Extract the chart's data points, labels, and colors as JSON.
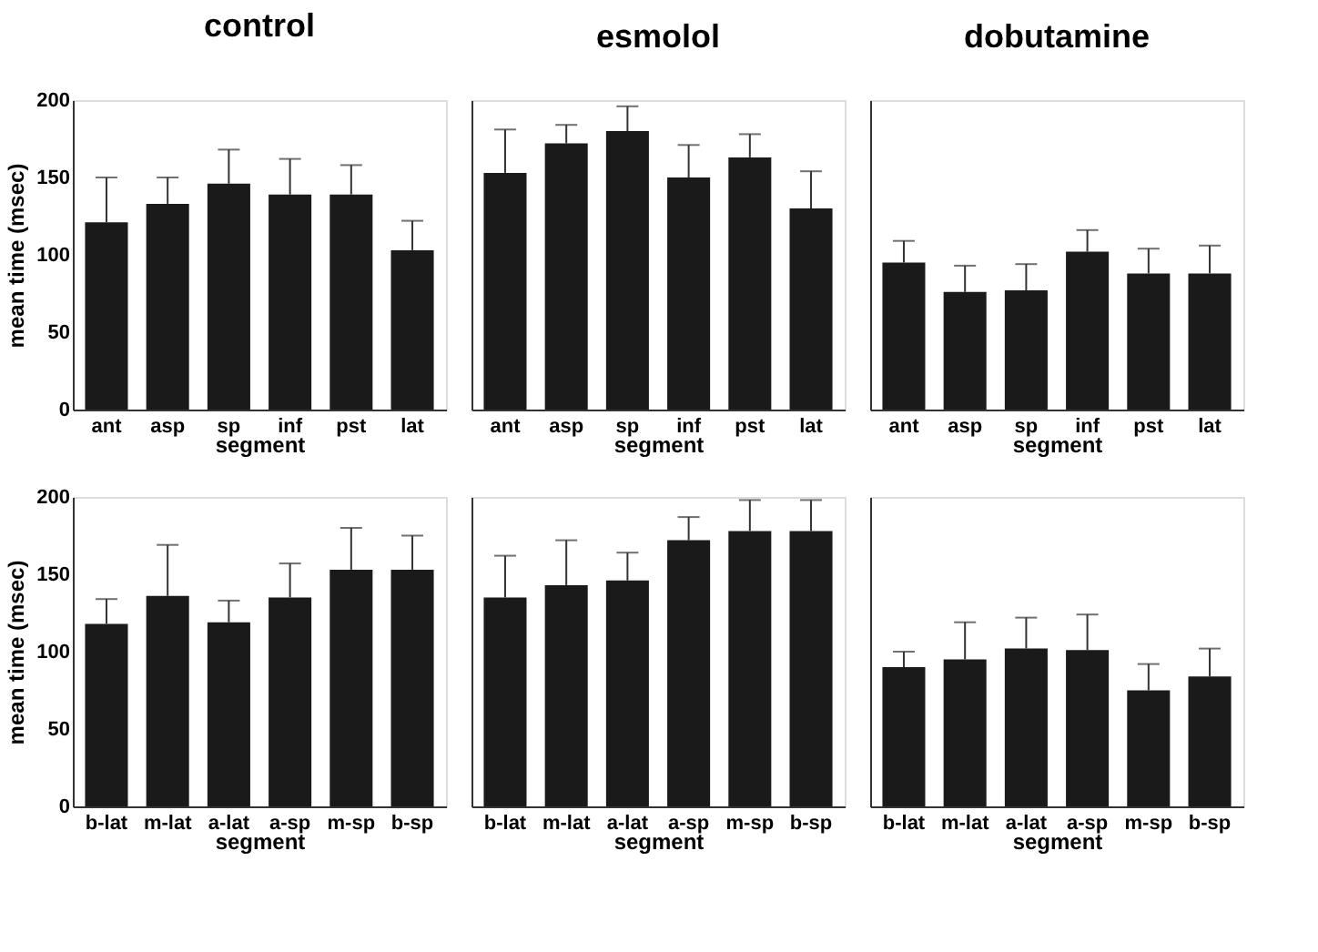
{
  "chart_data": [
    {
      "type": "bar",
      "title": "control",
      "categories": [
        "ant",
        "asp",
        "sp",
        "inf",
        "pst",
        "lat"
      ],
      "values": [
        121,
        133,
        146,
        139,
        139,
        103
      ],
      "errors": [
        [
          121,
          150
        ],
        [
          133,
          150
        ],
        [
          146,
          168
        ],
        [
          139,
          162
        ],
        [
          139,
          158
        ],
        [
          103,
          122
        ]
      ],
      "color": "#1a1a1a",
      "xlabel": "segment",
      "ylabel": "mean time (msec)",
      "ylim": [
        0,
        200
      ],
      "yticks": [
        0,
        50,
        100,
        150,
        200
      ],
      "grid": false
    },
    {
      "type": "bar",
      "title": "esmolol",
      "categories": [
        "ant",
        "asp",
        "sp",
        "inf",
        "pst",
        "lat"
      ],
      "values": [
        153,
        172,
        180,
        150,
        163,
        130
      ],
      "errors": [
        [
          153,
          181
        ],
        [
          172,
          184
        ],
        [
          180,
          196
        ],
        [
          150,
          171
        ],
        [
          163,
          178
        ],
        [
          130,
          154
        ]
      ],
      "color": "#1a1a1a",
      "xlabel": "segment",
      "ylim": [
        0,
        200
      ],
      "tick_labels": "x",
      "grid": false
    },
    {
      "type": "bar",
      "title": "dobutamine",
      "categories": [
        "ant",
        "asp",
        "sp",
        "inf",
        "pst",
        "lat"
      ],
      "values": [
        95,
        76,
        77,
        102,
        88,
        88
      ],
      "errors": [
        [
          95,
          109
        ],
        [
          76,
          93
        ],
        [
          77,
          94
        ],
        [
          102,
          116
        ],
        [
          88,
          104
        ],
        [
          88,
          106
        ]
      ],
      "color": "#1a1a1a",
      "xlabel": "segment",
      "ylim": [
        0,
        200
      ],
      "tick_labels": "x",
      "grid": false
    },
    {
      "type": "bar",
      "categories": [
        "b-lat",
        "m-lat",
        "a-lat",
        "a-sp",
        "m-sp",
        "b-sp"
      ],
      "values": [
        118,
        136,
        119,
        135,
        153,
        153
      ],
      "errors": [
        [
          118,
          134
        ],
        [
          136,
          169
        ],
        [
          119,
          133
        ],
        [
          135,
          157
        ],
        [
          153,
          180
        ],
        [
          153,
          175
        ]
      ],
      "color": "#1a1a1a",
      "xlabel": "segment",
      "ylabel": "mean time (msec)",
      "ylim": [
        0,
        200
      ],
      "yticks": [
        0,
        50,
        100,
        150,
        200
      ],
      "grid": false
    },
    {
      "type": "bar",
      "categories": [
        "b-lat",
        "m-lat",
        "a-lat",
        "a-sp",
        "m-sp",
        "b-sp"
      ],
      "values": [
        135,
        143,
        146,
        172,
        178,
        178
      ],
      "errors": [
        [
          135,
          162
        ],
        [
          143,
          172
        ],
        [
          146,
          164
        ],
        [
          172,
          187
        ],
        [
          178,
          198
        ],
        [
          178,
          198
        ]
      ],
      "color": "#1a1a1a",
      "xlabel": "segment",
      "ylim": [
        0,
        200
      ],
      "tick_labels": "x",
      "grid": false
    },
    {
      "type": "bar",
      "categories": [
        "b-lat",
        "m-lat",
        "a-lat",
        "a-sp",
        "m-sp",
        "b-sp"
      ],
      "values": [
        90,
        95,
        102,
        101,
        75,
        84
      ],
      "errors": [
        [
          90,
          100
        ],
        [
          95,
          119
        ],
        [
          102,
          122
        ],
        [
          101,
          124
        ],
        [
          75,
          92
        ],
        [
          84,
          102
        ]
      ],
      "color": "#1a1a1a",
      "xlabel": "segment",
      "ylim": [
        0,
        200
      ],
      "tick_labels": "x",
      "grid": false
    }
  ]
}
